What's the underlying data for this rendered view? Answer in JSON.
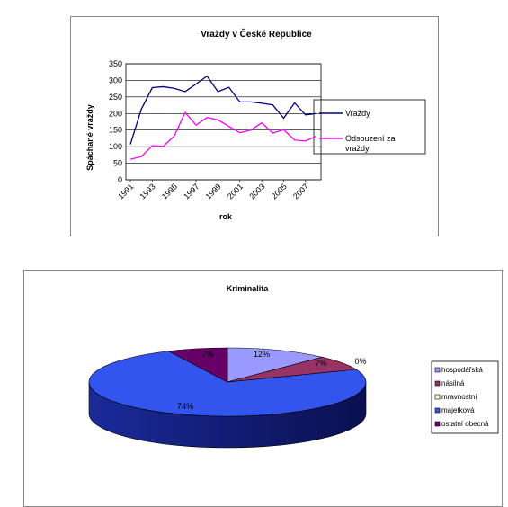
{
  "chart_data": [
    {
      "type": "line",
      "title": "Vraždy v České Republice",
      "xlabel": "rok",
      "ylabel": "Spáchané vraždy",
      "ylim": [
        0,
        350
      ],
      "yticks": [
        0,
        50,
        100,
        150,
        200,
        250,
        300,
        350
      ],
      "grid": true,
      "legend": "right",
      "x": [
        1991,
        1992,
        1993,
        1994,
        1995,
        1996,
        1997,
        1998,
        1999,
        2000,
        2001,
        2002,
        2003,
        2004,
        2005,
        2006,
        2007,
        2008
      ],
      "xtick_labels": [
        "1991",
        "1993",
        "1995",
        "1997",
        "1999",
        "2001",
        "2003",
        "2005",
        "2007"
      ],
      "series": [
        {
          "name": "Vraždy",
          "color": "#000080",
          "values": [
            107,
            213,
            278,
            281,
            276,
            266,
            289,
            313,
            266,
            279,
            235,
            235,
            231,
            226,
            186,
            232,
            196,
            200
          ]
        },
        {
          "name": "Odsouzení za vraždy",
          "color": "#ff00ff",
          "values": [
            62,
            70,
            103,
            101,
            132,
            203,
            165,
            188,
            181,
            161,
            142,
            150,
            172,
            141,
            151,
            120,
            117,
            132
          ]
        }
      ]
    },
    {
      "type": "pie",
      "title": "Kriminalita",
      "legend": "right",
      "slices": [
        {
          "name": "hospodářská",
          "value": 12,
          "label": "12%",
          "color": "#9999ff"
        },
        {
          "name": "násilná",
          "value": 7,
          "label": "7%",
          "color": "#993366"
        },
        {
          "name": "mravnostní",
          "value": 0,
          "label": "0%",
          "color": "#ffffcc"
        },
        {
          "name": "majetková",
          "value": 74,
          "label": "74%",
          "color": "#3355ee"
        },
        {
          "name": "ostatní obecná",
          "value": 7,
          "label": "7%",
          "color": "#660066"
        }
      ]
    }
  ]
}
